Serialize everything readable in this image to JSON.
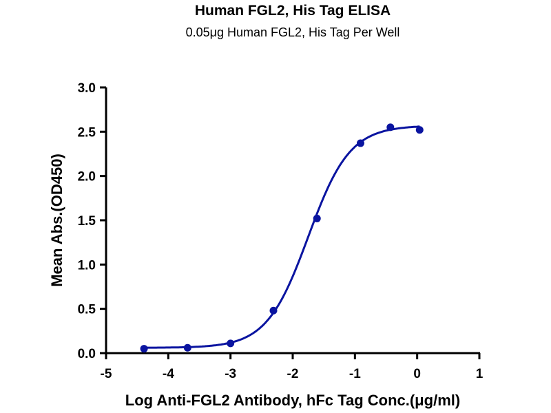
{
  "chart_data": {
    "type": "scatter",
    "title": "Human FGL2, His Tag ELISA",
    "subtitle": "0.05μg Human FGL2, His Tag Per Well",
    "xlabel": "Log Anti-FGL2 Antibody, hFc Tag Conc.(μg/ml)",
    "ylabel": "Mean Abs.(OD450)",
    "xlim": [
      -5,
      1
    ],
    "ylim": [
      0,
      3.0
    ],
    "xticks": [
      "-5",
      "-4",
      "-3",
      "-2",
      "-1",
      "0",
      "1"
    ],
    "xtick_values": [
      -5,
      -4,
      -3,
      -2,
      -1,
      0,
      1
    ],
    "yticks": [
      "0.0",
      "0.5",
      "1.0",
      "1.5",
      "2.0",
      "2.5",
      "3.0"
    ],
    "ytick_values": [
      0,
      0.5,
      1.0,
      1.5,
      2.0,
      2.5,
      3.0
    ],
    "grid": false,
    "color": "#0a14a0",
    "series": [
      {
        "name": "Human FGL2, His Tag",
        "x": [
          -4.39,
          -3.69,
          -3.0,
          -2.31,
          -1.61,
          -0.91,
          -0.43,
          0.04
        ],
        "y": [
          0.05,
          0.06,
          0.11,
          0.48,
          1.52,
          2.37,
          2.55,
          2.52
        ]
      }
    ],
    "fit": {
      "model": "4PL",
      "bottom": 0.06,
      "top": 2.57,
      "logEC50": -1.75,
      "hill": 1.3,
      "x_range": [
        -4.39,
        0.04
      ]
    }
  }
}
